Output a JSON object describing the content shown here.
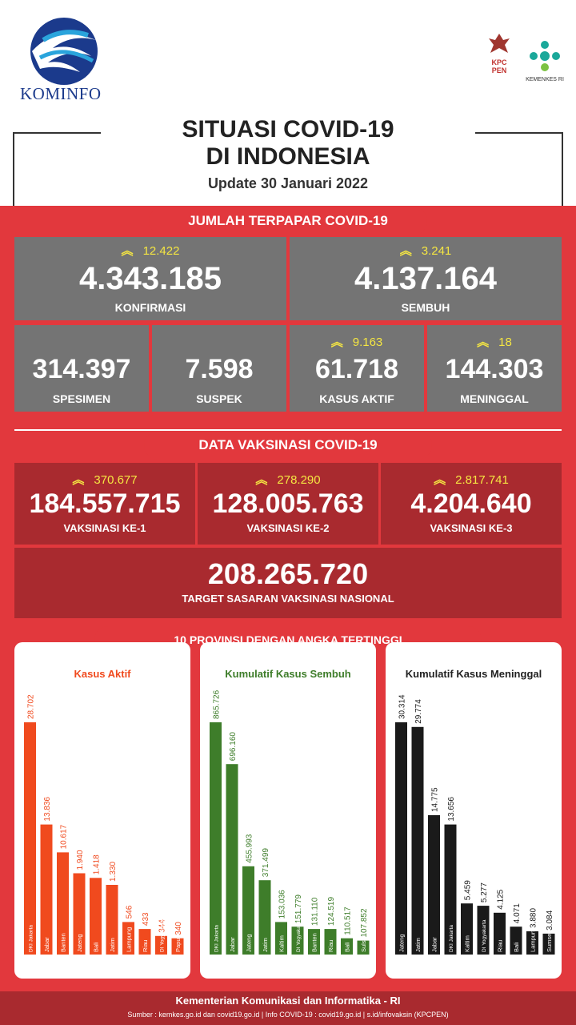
{
  "header": {
    "logo_text": "KOMINFO",
    "kpcpen_text_1": "KPC",
    "kpcpen_text_2": "PEN",
    "kemenkes_text": "KEMENKES RI",
    "title_line1": "SITUASI COVID-19",
    "title_line2": "DI INDONESIA",
    "update": "Update 30 Januari 2022"
  },
  "terpapar": {
    "section_title": "JUMLAH TERPAPAR COVID-19",
    "konfirmasi": {
      "delta": "12.422",
      "value": "4.343.185",
      "label": "KONFIRMASI"
    },
    "sembuh": {
      "delta": "3.241",
      "value": "4.137.164",
      "label": "SEMBUH"
    },
    "spesimen": {
      "value": "314.397",
      "label": "SPESIMEN"
    },
    "suspek": {
      "value": "7.598",
      "label": "SUSPEK"
    },
    "kasus_aktif": {
      "delta": "9.163",
      "value": "61.718",
      "label": "KASUS AKTIF"
    },
    "meninggal": {
      "delta": "18",
      "value": "144.303",
      "label": "MENINGGAL"
    }
  },
  "vaksinasi": {
    "section_title": "DATA VAKSINASI COVID-19",
    "ke1": {
      "delta": "370.677",
      "value": "184.557.715",
      "label": "VAKSINASI KE-1"
    },
    "ke2": {
      "delta": "278.290",
      "value": "128.005.763",
      "label": "VAKSINASI KE-2"
    },
    "ke3": {
      "delta": "2.817.741",
      "value": "4.204.640",
      "label": "VAKSINASI KE-3"
    },
    "target": {
      "value": "208.265.720",
      "label": "TARGET SASARAN VAKSINASI NASIONAL"
    }
  },
  "provinsi": {
    "section_title": "10 PROVINSI DENGAN ANGKA TERTINGGI"
  },
  "colors": {
    "red": "#e2383d",
    "dark_red": "#a92a2f",
    "grey": "#747474",
    "yellow": "#f5e642",
    "aktif": "#f04a1e",
    "sembuh": "#3e7d2a",
    "meninggal": "#1a1a1a"
  },
  "chart_data": [
    {
      "type": "bar",
      "title": "Kasus Aktif",
      "categories": [
        "DKI Jakarta",
        "Jabar",
        "Banten",
        "Jateng",
        "Bali",
        "Jatim",
        "Lampung",
        "Riau",
        "DI Yogyakarta",
        "Papua"
      ],
      "values": [
        28702,
        13836,
        10617,
        1940,
        1418,
        1330,
        546,
        433,
        344,
        340
      ],
      "value_labels": [
        "28.702",
        "13.836",
        "10.617",
        "1.940",
        "1.418",
        "1.330",
        "546",
        "433",
        "344",
        "340"
      ],
      "bar_heights_relative": [
        1.0,
        0.56,
        0.44,
        0.35,
        0.33,
        0.3,
        0.14,
        0.11,
        0.08,
        0.07
      ],
      "color": "#f04a1e"
    },
    {
      "type": "bar",
      "title": "Kumulatif Kasus Sembuh",
      "categories": [
        "DKI Jakarta",
        "Jabar",
        "Jateng",
        "Jatim",
        "Kaltim",
        "DI Yogyakarta",
        "Banten",
        "Riau",
        "Bali",
        "Sulsel"
      ],
      "values": [
        865726,
        696160,
        455993,
        371499,
        153036,
        151779,
        131110,
        124519,
        110517,
        107852
      ],
      "value_labels": [
        "865.726",
        "696.160",
        "455.993",
        "371.499",
        "153.036",
        "151.779",
        "131.110",
        "124.519",
        "110.517",
        "107.852"
      ],
      "bar_heights_relative": [
        1.0,
        0.82,
        0.38,
        0.32,
        0.14,
        0.12,
        0.11,
        0.11,
        0.07,
        0.06
      ],
      "color": "#3e7d2a"
    },
    {
      "type": "bar",
      "title": "Kumulatif Kasus Meninggal",
      "categories": [
        "Jateng",
        "Jatim",
        "Jabar",
        "DKI Jakarta",
        "Kaltim",
        "DI Yogyakarta",
        "Riau",
        "Bali",
        "Lampung",
        "Sumsel"
      ],
      "values": [
        30314,
        29774,
        14775,
        13656,
        5459,
        5277,
        4125,
        4071,
        3880,
        3084
      ],
      "value_labels": [
        "30.314",
        "29.774",
        "14.775",
        "13.656",
        "5.459",
        "5.277",
        "4.125",
        "4.071",
        "3.880",
        "3.084"
      ],
      "bar_heights_relative": [
        1.0,
        0.98,
        0.6,
        0.56,
        0.22,
        0.21,
        0.18,
        0.12,
        0.1,
        0.09
      ],
      "color": "#1a1a1a"
    }
  ],
  "footer": {
    "line1": "Kementerian Komunikasi dan Informatika - RI",
    "line2": "Sumber : kemkes.go.id dan covid19.go.id | Info COVID-19 : covid19.go.id | s.id/infovaksin (KPCPEN)"
  }
}
